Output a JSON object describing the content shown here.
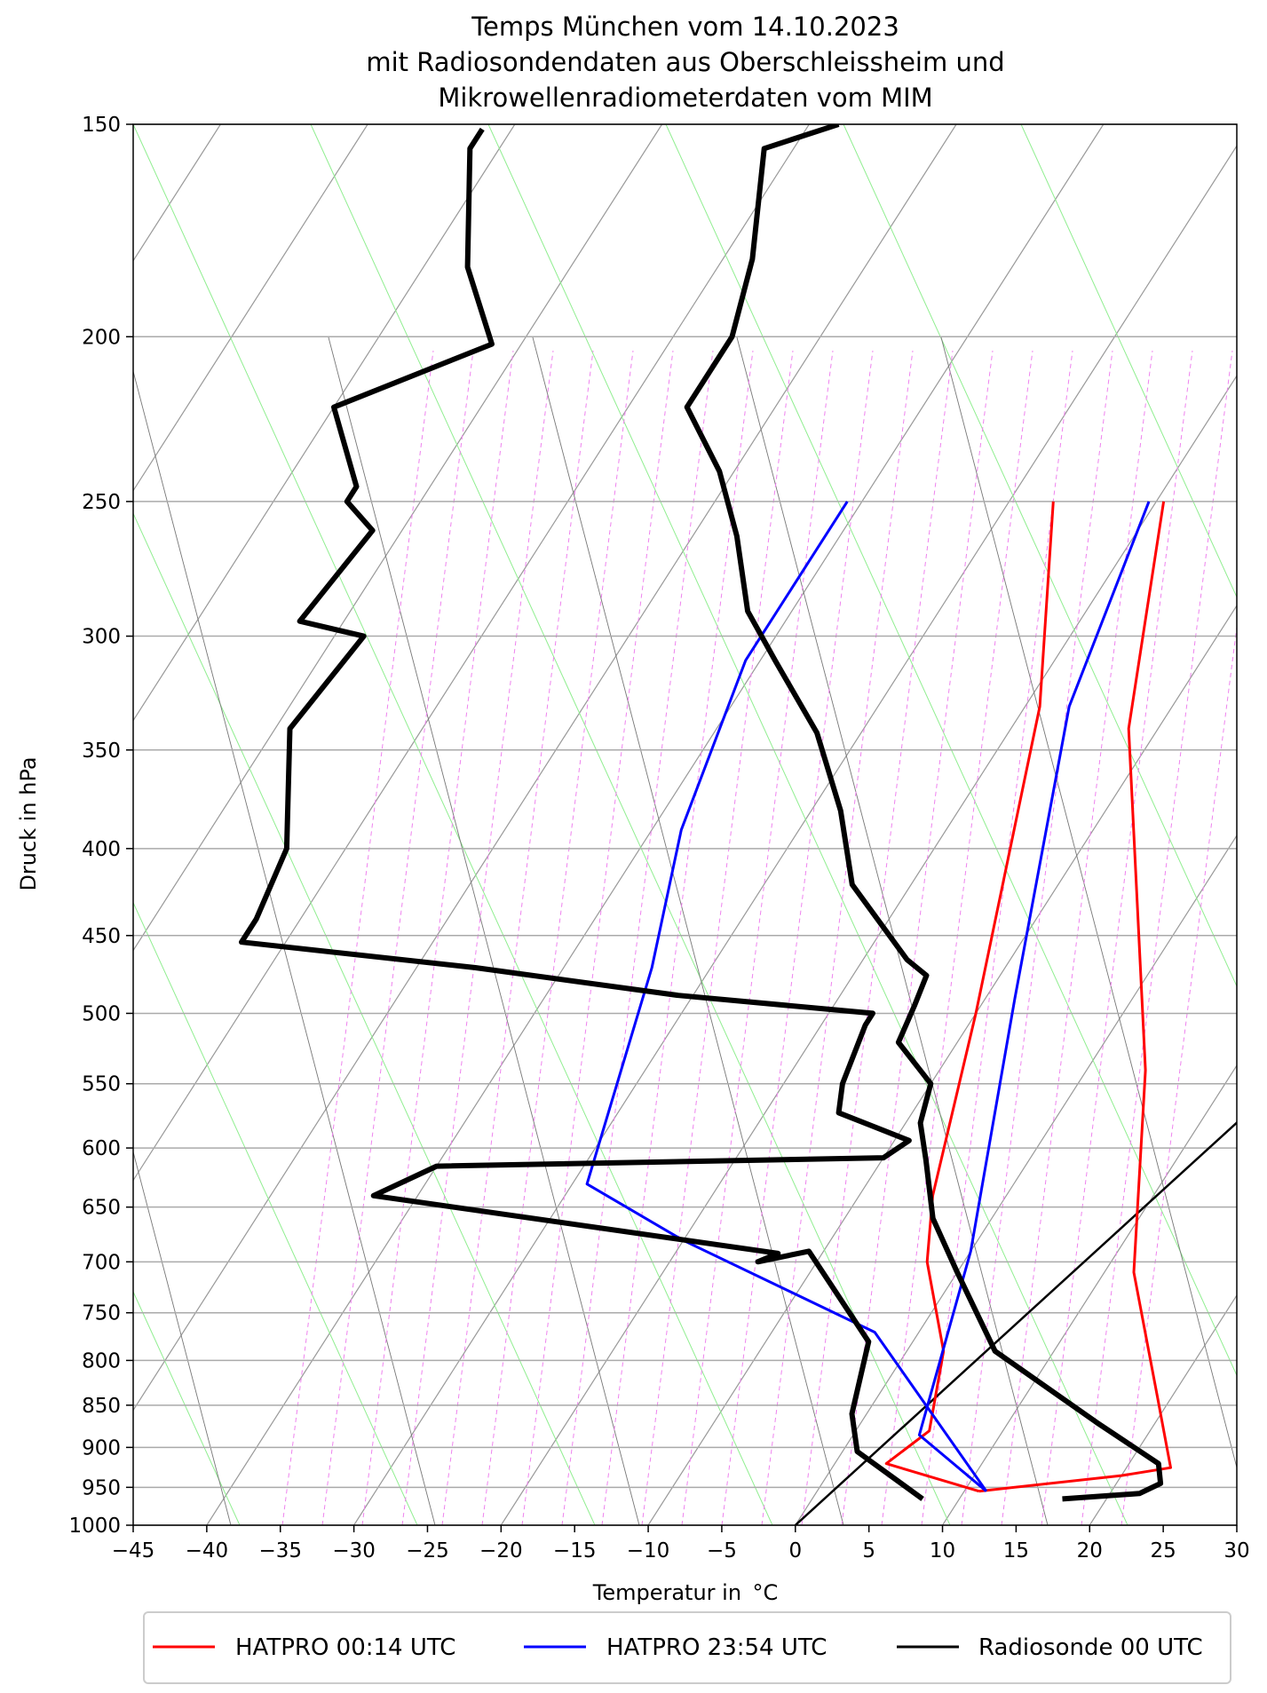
{
  "chart_data": {
    "type": "line",
    "title_lines": [
      "Temps München vom 14.10.2023",
      "mit Radiosondendaten aus Oberschleissheim und",
      "Mikrowellenradiometerdaten vom MIM"
    ],
    "xlabel": "Temperatur in  °C",
    "ylabel": "Druck in hPa",
    "xlim": [
      -45,
      30
    ],
    "ylim": [
      1000,
      150
    ],
    "y_scale": "log",
    "x_ticks": [
      -45,
      -40,
      -35,
      -30,
      -25,
      -20,
      -15,
      -10,
      -5,
      0,
      5,
      10,
      15,
      20,
      25,
      30
    ],
    "x_tick_labels": [
      "−45",
      "−40",
      "−35",
      "−30",
      "−25",
      "−20",
      "−15",
      "−10",
      "−5",
      "0",
      "5",
      "10",
      "15",
      "20",
      "25",
      "30"
    ],
    "y_ticks": [
      1000,
      950,
      900,
      850,
      800,
      750,
      700,
      650,
      600,
      550,
      500,
      450,
      400,
      350,
      300,
      250,
      200,
      150
    ],
    "y_tick_labels": [
      "1000",
      "950",
      "900",
      "850",
      "800",
      "750",
      "700",
      "650",
      "600",
      "550",
      "500",
      "450",
      "400",
      "350",
      "300",
      "250",
      "200",
      "150"
    ],
    "grid": true,
    "legend_position": "bottom",
    "skew": "skew-T log-p",
    "series": [
      {
        "name": "HATPRO 00:14 UTC",
        "color": "#ff0000",
        "profiles": [
          {
            "points": [
              [
                11,
                955
              ],
              [
                3.5,
                920
              ],
              [
                5,
                880
              ],
              [
                2.5,
                790
              ],
              [
                -2.5,
                700
              ],
              [
                -5,
                640
              ],
              [
                -10,
                500
              ],
              [
                -19,
                330
              ],
              [
                -27,
                250
              ]
            ]
          },
          {
            "points": [
              [
                11,
                955
              ],
              [
                20,
                935
              ],
              [
                23,
                925
              ],
              [
                19,
                840
              ],
              [
                12,
                710
              ],
              [
                4,
                540
              ],
              [
                -12,
                340
              ],
              [
                -19.5,
                250
              ]
            ]
          }
        ]
      },
      {
        "name": "HATPRO 23:54 UTC",
        "color": "#0000ff",
        "profiles": [
          {
            "points": [
              [
                11.5,
                955
              ],
              [
                -3,
                770
              ],
              [
                -20,
                680
              ],
              [
                -29,
                630
              ],
              [
                -34,
                470
              ],
              [
                -38,
                390
              ],
              [
                -41,
                310
              ],
              [
                -41,
                250
              ]
            ]
          },
          {
            "points": [
              [
                11.5,
                955
              ],
              [
                4.5,
                885
              ],
              [
                0,
                690
              ],
              [
                -8,
                490
              ],
              [
                -17,
                330
              ],
              [
                -20.5,
                250
              ]
            ]
          }
        ]
      },
      {
        "name": "Radiosonde 00 UTC",
        "color": "#000000",
        "profiles": [
          {
            "points": [
              [
                7.5,
                965
              ],
              [
                1,
                905
              ],
              [
                -1,
                860
              ],
              [
                -3,
                780
              ],
              [
                -11,
                690
              ],
              [
                -14,
                700
              ],
              [
                -13,
                692
              ],
              [
                -43,
                640
              ],
              [
                -40,
                615
              ],
              [
                -10,
                608
              ],
              [
                -9,
                594
              ],
              [
                -15,
                572
              ],
              [
                -16,
                550
              ],
              [
                -17,
                508
              ],
              [
                -17,
                500
              ],
              [
                -31,
                488
              ],
              [
                -46,
                470
              ],
              [
                -63,
                454
              ],
              [
                -63,
                440
              ],
              [
                -64,
                400
              ],
              [
                -69,
                340
              ],
              [
                -68,
                300
              ],
              [
                -73,
                294
              ],
              [
                -72,
                260
              ],
              [
                -75,
                250
              ],
              [
                -75,
                245
              ],
              [
                -80,
                220
              ],
              [
                -72,
                202
              ],
              [
                -77,
                182
              ],
              [
                -82,
                155
              ],
              [
                -82,
                151
              ]
            ]
          },
          {
            "points": [
              [
                17,
                965
              ],
              [
                22,
                958
              ],
              [
                23,
                945
              ],
              [
                22,
                920
              ],
              [
                16,
                870
              ],
              [
                6,
                790
              ],
              [
                0,
                710
              ],
              [
                -4,
                660
              ],
              [
                -7,
                610
              ],
              [
                -9,
                580
              ],
              [
                -10,
                550
              ],
              [
                -14,
                520
              ],
              [
                -14.5,
                495
              ],
              [
                -15,
                475
              ],
              [
                -17,
                465
              ],
              [
                -24,
                420
              ],
              [
                -28,
                380
              ],
              [
                -33,
                342
              ],
              [
                -39,
                310
              ],
              [
                -43,
                290
              ],
              [
                -47,
                262
              ],
              [
                -51,
                240
              ],
              [
                -56,
                220
              ],
              [
                -56,
                200
              ],
              [
                -58,
                180
              ],
              [
                -62,
                155
              ],
              [
                -58,
                150
              ]
            ]
          }
        ]
      }
    ],
    "reference_lines": [
      {
        "color": "#000000",
        "description_visible": false,
        "points": [
          [
            0,
            1000
          ],
          [
            30,
            270
          ]
        ]
      }
    ]
  }
}
